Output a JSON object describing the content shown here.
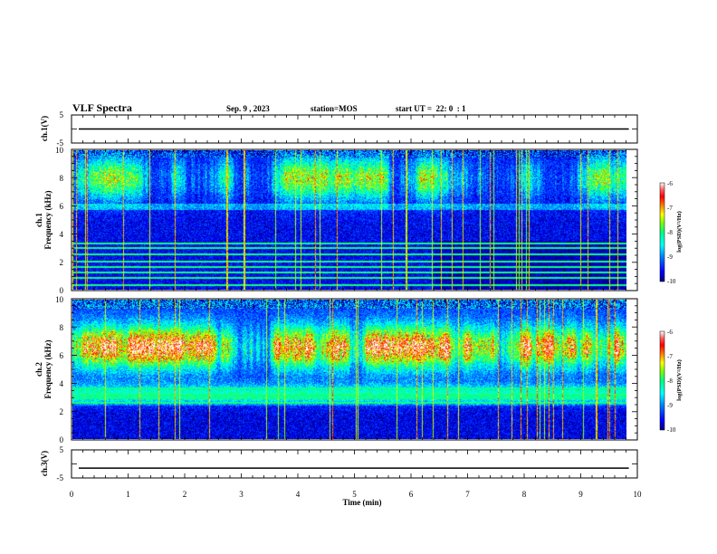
{
  "header": {
    "title": "VLF Spectra",
    "date": "Sep. 9 , 2023",
    "station": "station=MOS",
    "start_time": "start UT =  22: 0  : 1"
  },
  "colors": {
    "background": "#000000",
    "axis": "#000000",
    "colormap": [
      "#00007f",
      "#0000ff",
      "#0080ff",
      "#00ffff",
      "#00ff80",
      "#80ff00",
      "#ffff00",
      "#ff8000",
      "#ff0000",
      "#ff0000",
      "#ffffff"
    ]
  },
  "chart_data": [
    {
      "type": "line",
      "name": "ch1-voltage",
      "ylabel": "ch.1(V)",
      "ylim": [
        -5,
        5
      ],
      "yticks": [
        "5",
        "-5"
      ],
      "xlim": [
        0,
        10
      ],
      "series": [
        {
          "name": "ch.1",
          "x": [
            0,
            9.85
          ],
          "values": [
            0,
            0
          ]
        }
      ]
    },
    {
      "type": "heatmap",
      "name": "ch1-spectrogram",
      "ylabel_channel": "ch.1",
      "ylabel": "Frequency (kHz)",
      "ylim": [
        0,
        10
      ],
      "yticks": [
        "0",
        "2",
        "4",
        "6",
        "8",
        "10"
      ],
      "xlim": [
        0,
        10
      ],
      "data_end_min": 9.85,
      "colorbar": {
        "label": "log(PSD)(V²/Hz)",
        "range": [
          -10,
          -6
        ],
        "ticks": [
          "-6",
          "-7",
          "-8",
          "-9",
          "-10"
        ]
      },
      "features": {
        "noise_floor_logpsd": -9.6,
        "hiss_band_khz": [
          6,
          10
        ],
        "horizontal_lines_khz": [
          0.3,
          0.8,
          1.2,
          1.6,
          2.0,
          2.5,
          3.0,
          3.3
        ]
      }
    },
    {
      "type": "heatmap",
      "name": "ch2-spectrogram",
      "ylabel_channel": "ch.2",
      "ylabel": "Frequency (kHz)",
      "ylim": [
        0,
        10
      ],
      "yticks": [
        "0",
        "2",
        "4",
        "6",
        "8",
        "10"
      ],
      "xlim": [
        0,
        10
      ],
      "data_end_min": 9.85,
      "colorbar": {
        "label": "log(PSD)(V²/Hz)",
        "range": [
          -10,
          -6
        ],
        "ticks": [
          "-6",
          "-7",
          "-8",
          "-9",
          "-10"
        ]
      },
      "features": {
        "noise_floor_logpsd": -9.3,
        "hiss_band_khz": [
          4,
          9
        ],
        "horizontal_lines_khz": [
          2.6,
          2.9,
          3.1,
          3.6
        ]
      }
    },
    {
      "type": "line",
      "name": "ch3-voltage",
      "ylabel": "ch.3(V)",
      "ylim": [
        -5,
        5
      ],
      "yticks": [
        "5",
        "-5"
      ],
      "xlim": [
        0,
        10
      ],
      "xlabel": "Time (min)",
      "xticks": [
        "0",
        "1",
        "2",
        "3",
        "4",
        "5",
        "6",
        "7",
        "8",
        "9",
        "10"
      ],
      "series": [
        {
          "name": "ch.3",
          "x": [
            0,
            9.85
          ],
          "values": [
            -1.5,
            -1.5
          ]
        }
      ]
    }
  ]
}
